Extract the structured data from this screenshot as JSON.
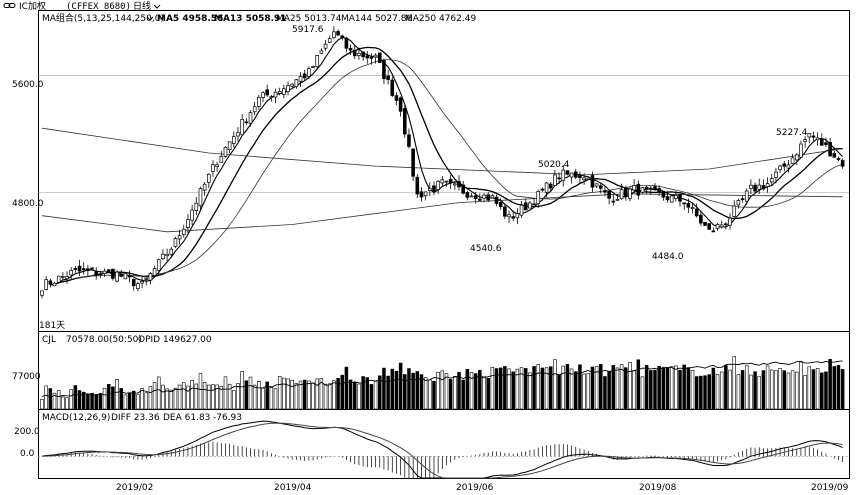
{
  "header": {
    "icon": "link-icon",
    "symbol": "IC加权",
    "code": "(CFFEX 8680)",
    "period": "日线"
  },
  "ma": {
    "label": "MA组合(5,13,25,144,250,0)",
    "ma5": "MA5 4958.56",
    "ma13": "MA13 5058.91",
    "ma25": "MA25 5013.74",
    "ma144": "MA144 5027.86",
    "ma250": "MA250 4762.49"
  },
  "price_axis": {
    "labels": [
      "5600.0",
      "4800.0"
    ]
  },
  "annotations": {
    "high1": "5917.6",
    "low1": "4540.6",
    "high2": "5020.4",
    "low2": "4484.0",
    "high3": "5227.4",
    "days": "181天"
  },
  "volume": {
    "title": "CJL",
    "value": "70578.00(50:50)",
    "opid": "OPID 149627.00",
    "axis_label": "77000"
  },
  "macd": {
    "title": "MACD(12,26,9)",
    "diff": "DIFF 23.36",
    "dea": "DEA 61.83",
    "hist": "-76.93",
    "axis_labels": [
      "200.0",
      "0.0"
    ]
  },
  "x_axis": {
    "labels": [
      "2019/02",
      "2019/04",
      "2019/06",
      "2019/08",
      "2019/09"
    ]
  },
  "colors": {
    "up": "#ffffff",
    "down": "#000000",
    "line": "#000000"
  },
  "chart_data": {
    "type": "candlestick",
    "ylim": [
      3850,
      6050
    ],
    "volume_ylim": [
      0,
      200000
    ],
    "macd_ylim": [
      -160,
      260
    ],
    "keypoints": [
      {
        "i": 0,
        "v": 4160
      },
      {
        "i": 8,
        "v": 4260
      },
      {
        "i": 18,
        "v": 4240
      },
      {
        "i": 24,
        "v": 4160
      },
      {
        "i": 32,
        "v": 4460
      },
      {
        "i": 42,
        "v": 5020
      },
      {
        "i": 52,
        "v": 5440
      },
      {
        "i": 58,
        "v": 5520
      },
      {
        "i": 64,
        "v": 5620
      },
      {
        "i": 70,
        "v": 5900
      },
      {
        "i": 74,
        "v": 5760
      },
      {
        "i": 80,
        "v": 5720
      },
      {
        "i": 86,
        "v": 5380
      },
      {
        "i": 90,
        "v": 4780
      },
      {
        "i": 96,
        "v": 4860
      },
      {
        "i": 102,
        "v": 4800
      },
      {
        "i": 108,
        "v": 4760
      },
      {
        "i": 112,
        "v": 4620
      },
      {
        "i": 118,
        "v": 4750
      },
      {
        "i": 124,
        "v": 4920
      },
      {
        "i": 130,
        "v": 4920
      },
      {
        "i": 136,
        "v": 4760
      },
      {
        "i": 142,
        "v": 4820
      },
      {
        "i": 148,
        "v": 4780
      },
      {
        "i": 154,
        "v": 4740
      },
      {
        "i": 160,
        "v": 4530
      },
      {
        "i": 164,
        "v": 4600
      },
      {
        "i": 170,
        "v": 4820
      },
      {
        "i": 174,
        "v": 4860
      },
      {
        "i": 180,
        "v": 5040
      },
      {
        "i": 184,
        "v": 5200
      },
      {
        "i": 188,
        "v": 5110
      },
      {
        "i": 192,
        "v": 5000
      }
    ],
    "ma_lines": {
      "ma144": [
        [
          0,
          5240
        ],
        [
          40,
          5070
        ],
        [
          80,
          4980
        ],
        [
          130,
          4920
        ],
        [
          160,
          4960
        ],
        [
          192,
          5100
        ]
      ],
      "ma250": [
        [
          0,
          4640
        ],
        [
          30,
          4530
        ],
        [
          60,
          4580
        ],
        [
          100,
          4730
        ],
        [
          140,
          4790
        ],
        [
          192,
          4770
        ]
      ]
    }
  }
}
